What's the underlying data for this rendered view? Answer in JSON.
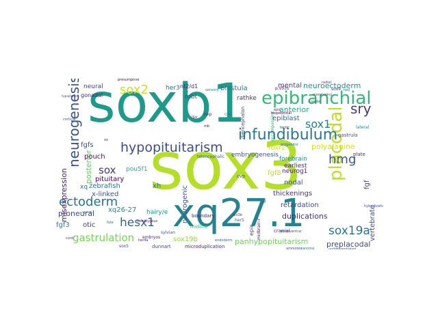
{
  "words": [
    {
      "text": "sox3",
      "color": "#b5de2b"
    },
    {
      "text": "soxb1",
      "color": "#1f9a8a"
    },
    {
      "text": "xq27.1",
      "color": "#26828e"
    },
    {
      "text": "placodal",
      "color": "#bddf26"
    },
    {
      "text": "epibranchial",
      "color": "#35b779"
    },
    {
      "text": "neurogenesis",
      "color": "#3b528b"
    },
    {
      "text": "infundibulum",
      "color": "#2a788e"
    },
    {
      "text": "hypopituitarism",
      "color": "#3e4a89"
    },
    {
      "text": "ectoderm",
      "color": "#2c728e"
    },
    {
      "text": "sox2",
      "color": "#c8e020"
    },
    {
      "text": "sry",
      "color": "#443a83"
    },
    {
      "text": "hmg",
      "color": "#3b528b"
    },
    {
      "text": "sox1",
      "color": "#2a788e"
    },
    {
      "text": "sox19a",
      "color": "#2c728e"
    },
    {
      "text": "hesx1",
      "color": "#33638d"
    },
    {
      "text": "gastrulation",
      "color": "#7ad151"
    },
    {
      "text": "sox",
      "color": "#46337e"
    },
    {
      "text": "misexpression",
      "color": "#481a6c"
    },
    {
      "text": "posterior",
      "color": "#5ec962"
    },
    {
      "text": "neuroectoderm",
      "color": "#21918c"
    },
    {
      "text": "anterior",
      "color": "#22a884"
    },
    {
      "text": "duplications",
      "color": "#472d7b"
    },
    {
      "text": "panhypopituitarism",
      "color": "#6ece58"
    },
    {
      "text": "retardation",
      "color": "#3e4989"
    },
    {
      "text": "preplacodal",
      "color": "#404688"
    },
    {
      "text": "mental",
      "color": "#433e85"
    },
    {
      "text": "blastula",
      "color": "#2d708e"
    },
    {
      "text": "rathke",
      "color": "#472f7d"
    },
    {
      "text": "epiblast",
      "color": "#2f6c8e"
    },
    {
      "text": "embryogenesis",
      "color": "#3b528b"
    },
    {
      "text": "neurogenic",
      "color": "#39568c"
    },
    {
      "text": "polyalanine",
      "color": "#d0e11c"
    },
    {
      "text": "foxi1",
      "color": "#cae11f"
    },
    {
      "text": "fgf8",
      "color": "#bddf26"
    },
    {
      "text": "zebrafish",
      "color": "#2c728e"
    },
    {
      "text": "xh",
      "color": "#31688e"
    },
    {
      "text": "x-linked",
      "color": "#3b528b"
    },
    {
      "text": "pituitary",
      "color": "#440154"
    },
    {
      "text": "pou5f1",
      "color": "#27ad81"
    },
    {
      "text": "pouch",
      "color": "#471365"
    },
    {
      "text": "fgfs",
      "color": "#3a538b"
    },
    {
      "text": "xq26-27",
      "color": "#25848e"
    },
    {
      "text": "proneural",
      "color": "#3e4a89"
    },
    {
      "text": "otic",
      "color": "#453882"
    },
    {
      "text": "fgf3",
      "color": "#2a788e"
    },
    {
      "text": "sox19b",
      "color": "#95d840"
    },
    {
      "text": "her3",
      "color": "#2c718e"
    },
    {
      "text": "nt2/d1",
      "color": "#481b6d"
    },
    {
      "text": "mbt",
      "color": "#3f4788"
    },
    {
      "text": "neural",
      "color": "#414487"
    },
    {
      "text": "gonadal",
      "color": "#482475"
    },
    {
      "text": "xq",
      "color": "#2f6c8e"
    },
    {
      "text": "neurog1",
      "color": "#482576"
    },
    {
      "text": "nodal",
      "color": "#3b528b"
    },
    {
      "text": "thickenings",
      "color": "#46307e"
    },
    {
      "text": "forebrain",
      "color": "#24878e"
    },
    {
      "text": "earliest",
      "color": "#472a7a"
    },
    {
      "text": "vertebrate",
      "color": "#3d4e8a"
    },
    {
      "text": "fgf",
      "color": "#404588"
    },
    {
      "text": "midline",
      "color": "#32b67a"
    },
    {
      "text": "cvp",
      "color": "#38588c"
    },
    {
      "text": "boundary",
      "color": "#482071"
    },
    {
      "text": "hairy/e",
      "color": "#1f948c"
    },
    {
      "text": "dunnart",
      "color": "#404688"
    },
    {
      "text": "microduplication",
      "color": "#481f70"
    },
    {
      "text": "epic",
      "color": "#3f4889"
    },
    {
      "text": "telencephalic",
      "color": "#355f8d"
    },
    {
      "text": "diencephalon",
      "color": "#3e4989"
    },
    {
      "text": "cranial",
      "color": "#472c7a"
    },
    {
      "text": "p.v531",
      "color": "#440154"
    },
    {
      "text": "sox9",
      "color": "#472e7c"
    },
    {
      "text": "gastrula",
      "color": "#3a548c"
    },
    {
      "text": "lateral",
      "color": "#2a788e"
    },
    {
      "text": "plate",
      "color": "#482878"
    },
    {
      "text": "sox5",
      "color": "#3b518b"
    },
    {
      "text": "embryos",
      "color": "#482576"
    },
    {
      "text": "sylvian",
      "color": "#39568c"
    },
    {
      "text": "mb",
      "color": "#470e61"
    },
    {
      "text": "isv",
      "color": "#472d7b"
    },
    {
      "text": "cns",
      "color": "#2e6e8e"
    },
    {
      "text": "biopotential",
      "color": "#440154"
    },
    {
      "text": "encompassing",
      "color": "#27ad81"
    },
    {
      "text": "tectic",
      "color": "#48186a"
    },
    {
      "text": "dorsoventral",
      "color": "#3b528b"
    },
    {
      "text": "midbrain-r",
      "color": "#482475"
    },
    {
      "text": "hemizygous",
      "color": "#481769"
    },
    {
      "text": "ranging",
      "color": "#2c728e"
    },
    {
      "text": "undifferentiated",
      "color": "#3b528b"
    },
    {
      "text": "her5",
      "color": "#31688e"
    },
    {
      "text": "dlx3b",
      "color": "#443983"
    },
    {
      "text": "spl",
      "color": "#2d708e"
    },
    {
      "text": "caudal",
      "color": "#3e4989"
    },
    {
      "text": "nep",
      "color": "#482071"
    },
    {
      "text": "sensory",
      "color": "#2a788e"
    },
    {
      "text": "rasl",
      "color": "#3b528b"
    },
    {
      "text": "epic",
      "color": "#481b6d"
    },
    {
      "text": "morpholino",
      "color": "#3e4989"
    },
    {
      "text": "hypophyseal",
      "color": "#46307e"
    },
    {
      "text": "radial",
      "color": "#3f4788"
    },
    {
      "text": "presumptive",
      "color": "#440154"
    },
    {
      "text": "fate",
      "color": "#2c728e"
    },
    {
      "text": "her4a",
      "color": "#482878"
    },
    {
      "text": "endoderm",
      "color": "#31688e"
    },
    {
      "text": "amniotes",
      "color": "#3e4a89"
    },
    {
      "text": "xx",
      "color": "#482071"
    },
    {
      "text": "cortical",
      "color": "#38588c"
    },
    {
      "text": "progenitor",
      "color": "#2c718e"
    },
    {
      "text": "hybridization",
      "color": "#3b528b"
    },
    {
      "text": "spinal",
      "color": "#2a788e"
    },
    {
      "text": "cord",
      "color": "#443983"
    }
  ]
}
